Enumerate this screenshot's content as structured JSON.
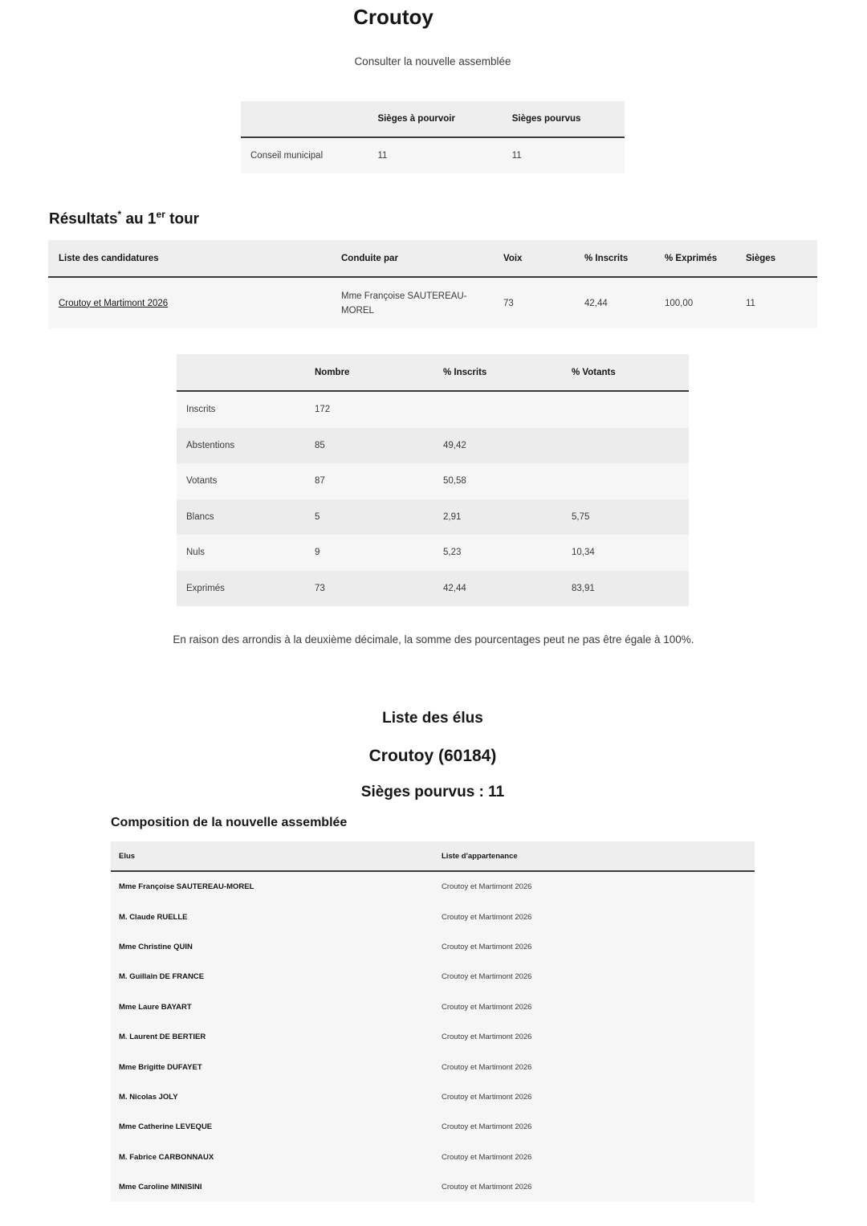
{
  "header": {
    "title": "Croutoy",
    "subtitle": "Consulter la nouvelle assemblée"
  },
  "seats_table": {
    "headers": [
      "",
      "Sièges à pourvoir",
      "Sièges pourvus"
    ],
    "row": [
      "Conseil municipal",
      "11",
      "11"
    ]
  },
  "results": {
    "heading_prefix": "Résultats",
    "heading_star": "*",
    "heading_mid": " au 1",
    "heading_sup": "er",
    "heading_suffix": " tour",
    "headers": [
      "Liste des candidatures",
      "Conduite par",
      "Voix",
      "% Inscrits",
      "% Exprimés",
      "Sièges"
    ],
    "row": {
      "list": "Croutoy et Martimont 2026",
      "leader": "Mme Françoise SAUTEREAU-MOREL",
      "voix": "73",
      "inscrits": "42,44",
      "exprimes": "100,00",
      "sieges": "11"
    }
  },
  "participation": {
    "headers": [
      "",
      "Nombre",
      "% Inscrits",
      "% Votants"
    ],
    "rows": [
      [
        "Inscrits",
        "172",
        "",
        ""
      ],
      [
        "Abstentions",
        "85",
        "49,42",
        ""
      ],
      [
        "Votants",
        "87",
        "50,58",
        ""
      ],
      [
        "Blancs",
        "5",
        "2,91",
        "5,75"
      ],
      [
        "Nuls",
        "9",
        "5,23",
        "10,34"
      ],
      [
        "Exprimés",
        "73",
        "42,44",
        "83,91"
      ]
    ]
  },
  "note": "En raison des arrondis à la deuxième décimale, la somme des pourcentages peut ne pas être égale à 100%.",
  "elus": {
    "heading": "Liste des élus",
    "commune": "Croutoy (60184)",
    "seats": "Sièges pourvus : 11",
    "composition": "Composition de la nouvelle assemblée",
    "headers": [
      "Elus",
      "Liste d'appartenance"
    ],
    "rows": [
      [
        "Mme Françoise SAUTEREAU-MOREL",
        "Croutoy et Martimont 2026"
      ],
      [
        "M. Claude RUELLE",
        "Croutoy et Martimont 2026"
      ],
      [
        "Mme Christine QUIN",
        "Croutoy et Martimont 2026"
      ],
      [
        "M. Guillain DE FRANCE",
        "Croutoy et Martimont 2026"
      ],
      [
        "Mme Laure BAYART",
        "Croutoy et Martimont 2026"
      ],
      [
        "M. Laurent DE BERTIER",
        "Croutoy et Martimont 2026"
      ],
      [
        "Mme Brigitte DUFAYET",
        "Croutoy et Martimont 2026"
      ],
      [
        "M. Nicolas JOLY",
        "Croutoy et Martimont 2026"
      ],
      [
        "Mme Catherine LEVEQUE",
        "Croutoy et Martimont 2026"
      ],
      [
        "M. Fabrice CARBONNAUX",
        "Croutoy et Martimont 2026"
      ],
      [
        "Mme Caroline MINISINI",
        "Croutoy et Martimont 2026"
      ]
    ]
  }
}
